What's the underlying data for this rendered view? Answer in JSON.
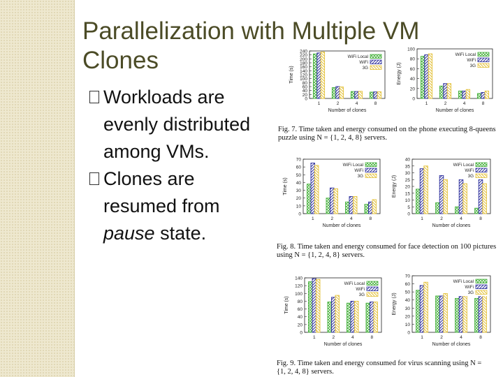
{
  "slide": {
    "title_line1": "Parallelization with Multiple VM",
    "title_line2": "Clones",
    "bullets": [
      {
        "line1": "Workloads are",
        "line2": "evenly distributed",
        "line3": "among VMs.",
        "line3_italic": ""
      },
      {
        "line1": "Clones are",
        "line2": "resumed from",
        "line3": "pause",
        "line3_italic_after": " state."
      }
    ],
    "sidebar_color": "#eee8cf"
  },
  "figures": [
    {
      "caption": "Fig. 7.   Time taken and energy consumed on the phone executing 8-queens\npuzzle using N = {1, 2, 4, 8} servers."
    },
    {
      "caption": "Fig. 8.   Time taken and energy consumed for face detection on 100 pictures\nusing N = {1, 2, 4, 8} servers."
    },
    {
      "caption": "Fig. 9.   Time taken and energy consumed for virus scanning using N =\n{1, 2, 4, 8} servers."
    }
  ],
  "legend": [
    "WiFi Local",
    "WiFi",
    "3G"
  ],
  "series_colors": {
    "WiFi Local": "#44b03a",
    "WiFi": "#2b2d9c",
    "3G": "#e3c13a"
  },
  "chart_data": [
    {
      "type": "bar",
      "title": "",
      "xlabel": "Number of clones",
      "ylabel": "Time (s)",
      "categories": [
        "1",
        "2",
        "4",
        "8"
      ],
      "ylim": [
        0,
        240
      ],
      "ticks": [
        0,
        20,
        40,
        60,
        80,
        100,
        120,
        140,
        160,
        180,
        200,
        220,
        240
      ],
      "tick_labels": [
        "0",
        "20",
        "40",
        "60",
        "80",
        "100",
        "120",
        "140",
        "160",
        "180",
        "200",
        "220",
        "240"
      ],
      "series": [
        {
          "name": "WiFi Local",
          "values": [
            225,
            55,
            35,
            32
          ]
        },
        {
          "name": "WiFi",
          "values": [
            230,
            60,
            35,
            33
          ]
        },
        {
          "name": "3G",
          "values": [
            235,
            58,
            36,
            34
          ]
        }
      ]
    },
    {
      "type": "bar",
      "title": "",
      "xlabel": "Number of clones",
      "ylabel": "Energy (J)",
      "categories": [
        "1",
        "2",
        "4",
        "8"
      ],
      "ylim": [
        0,
        100
      ],
      "ticks": [
        0,
        20,
        40,
        60,
        80,
        100
      ],
      "tick_labels": [
        "0",
        "20",
        "40",
        "60",
        "80",
        "100"
      ],
      "series": [
        {
          "name": "WiFi Local",
          "values": [
            85,
            25,
            15,
            10
          ]
        },
        {
          "name": "WiFi",
          "values": [
            88,
            30,
            15,
            12
          ]
        },
        {
          "name": "3G",
          "values": [
            90,
            30,
            18,
            15
          ]
        }
      ]
    },
    {
      "type": "bar",
      "title": "",
      "xlabel": "Number of clones",
      "ylabel": "Time (s)",
      "categories": [
        "1",
        "2",
        "4",
        "8"
      ],
      "ylim": [
        0,
        70
      ],
      "ticks": [
        0,
        10,
        20,
        30,
        40,
        50,
        60,
        70
      ],
      "tick_labels": [
        "0",
        "10",
        "20",
        "30",
        "40",
        "50",
        "60",
        "70"
      ],
      "series": [
        {
          "name": "WiFi Local",
          "values": [
            38,
            20,
            15,
            12
          ]
        },
        {
          "name": "WiFi",
          "values": [
            65,
            33,
            22,
            15
          ]
        },
        {
          "name": "3G",
          "values": [
            62,
            32,
            22,
            18
          ]
        }
      ]
    },
    {
      "type": "bar",
      "title": "",
      "xlabel": "Number of clones",
      "ylabel": "Energy (J)",
      "categories": [
        "1",
        "2",
        "4",
        "8"
      ],
      "ylim": [
        0,
        40
      ],
      "ticks": [
        0,
        5,
        10,
        15,
        20,
        25,
        30,
        35,
        40
      ],
      "tick_labels": [
        "0",
        "5",
        "10",
        "15",
        "20",
        "25",
        "30",
        "35",
        "40"
      ],
      "series": [
        {
          "name": "WiFi Local",
          "values": [
            18,
            8,
            5,
            4
          ]
        },
        {
          "name": "WiFi",
          "values": [
            33,
            28,
            25,
            25
          ]
        },
        {
          "name": "3G",
          "values": [
            35,
            25,
            22,
            22
          ]
        }
      ]
    },
    {
      "type": "bar",
      "title": "",
      "xlabel": "Number of clones",
      "ylabel": "Time (s)",
      "categories": [
        "1",
        "2",
        "4",
        "8"
      ],
      "ylim": [
        0,
        140
      ],
      "ticks": [
        0,
        20,
        40,
        60,
        80,
        100,
        120,
        140
      ],
      "tick_labels": [
        "0",
        "20",
        "40",
        "60",
        "80",
        "100",
        "120",
        "140"
      ],
      "series": [
        {
          "name": "WiFi Local",
          "values": [
            130,
            78,
            75,
            75
          ]
        },
        {
          "name": "WiFi",
          "values": [
            138,
            90,
            80,
            78
          ]
        },
        {
          "name": "3G",
          "values": [
            136,
            95,
            80,
            78
          ]
        }
      ]
    },
    {
      "type": "bar",
      "title": "",
      "xlabel": "Number of clones",
      "ylabel": "Energy (J)",
      "categories": [
        "1",
        "2",
        "4",
        "8"
      ],
      "ylim": [
        0,
        70
      ],
      "ticks": [
        0,
        10,
        20,
        30,
        40,
        50,
        60,
        70
      ],
      "tick_labels": [
        "0",
        "10",
        "20",
        "30",
        "40",
        "50",
        "60",
        "70"
      ],
      "series": [
        {
          "name": "WiFi Local",
          "values": [
            52,
            45,
            42,
            42
          ]
        },
        {
          "name": "WiFi",
          "values": [
            58,
            45,
            45,
            50
          ]
        },
        {
          "name": "3G",
          "values": [
            62,
            48,
            45,
            50
          ]
        }
      ]
    }
  ]
}
